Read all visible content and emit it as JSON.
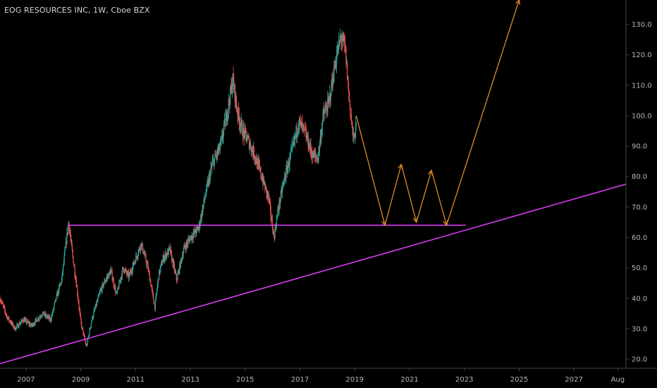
{
  "header": {
    "legend_text": "EOG RESOURCES INC, 1W, Cboe BZX"
  },
  "colors": {
    "background": "#000000",
    "candle_up": "#26a69a",
    "candle_down": "#ef5350",
    "trendline": "#e040fb",
    "projection": "#e08a2a",
    "axis_text": "#b7b7b7",
    "axis_line": "#444444"
  },
  "chart_data": {
    "type": "candlestick",
    "title": "EOG RESOURCES INC, 1W, Cboe BZX",
    "y_axis": {
      "ticks": [
        20,
        30,
        40,
        50,
        60,
        70,
        80,
        90,
        100,
        110,
        120,
        130
      ],
      "ylim": [
        17,
        138
      ],
      "position": "right"
    },
    "x_axis": {
      "ticks": [
        {
          "label": "2007",
          "t": 2007.0
        },
        {
          "label": "2009",
          "t": 2009.0
        },
        {
          "label": "2011",
          "t": 2011.0
        },
        {
          "label": "2013",
          "t": 2013.0
        },
        {
          "label": "2015",
          "t": 2015.0
        },
        {
          "label": "2017",
          "t": 2017.0
        },
        {
          "label": "2019",
          "t": 2019.0
        },
        {
          "label": "2021",
          "t": 2021.0
        },
        {
          "label": "2023",
          "t": 2023.0
        },
        {
          "label": "2025",
          "t": 2025.0
        },
        {
          "label": "2027",
          "t": 2027.0
        },
        {
          "label": "Aug",
          "t": 2028.6
        }
      ],
      "xlim": [
        2006.05,
        2028.9
      ]
    },
    "grid": false,
    "price_path": [
      [
        2006.05,
        40
      ],
      [
        2006.3,
        34
      ],
      [
        2006.6,
        30
      ],
      [
        2006.9,
        33
      ],
      [
        2007.2,
        31
      ],
      [
        2007.6,
        35
      ],
      [
        2007.9,
        33
      ],
      [
        2008.1,
        40
      ],
      [
        2008.3,
        46
      ],
      [
        2008.55,
        65
      ],
      [
        2008.7,
        54
      ],
      [
        2008.85,
        44
      ],
      [
        2009.0,
        32
      ],
      [
        2009.2,
        24
      ],
      [
        2009.4,
        33
      ],
      [
        2009.7,
        42
      ],
      [
        2009.9,
        46
      ],
      [
        2010.1,
        49
      ],
      [
        2010.3,
        41
      ],
      [
        2010.55,
        50
      ],
      [
        2010.75,
        47
      ],
      [
        2011.0,
        53
      ],
      [
        2011.2,
        58
      ],
      [
        2011.45,
        50
      ],
      [
        2011.7,
        37
      ],
      [
        2011.85,
        48
      ],
      [
        2012.0,
        53
      ],
      [
        2012.25,
        56
      ],
      [
        2012.5,
        46
      ],
      [
        2012.75,
        56
      ],
      [
        2013.0,
        60
      ],
      [
        2013.3,
        63
      ],
      [
        2013.55,
        74
      ],
      [
        2013.8,
        84
      ],
      [
        2014.1,
        90
      ],
      [
        2014.4,
        104
      ],
      [
        2014.55,
        112
      ],
      [
        2014.7,
        102
      ],
      [
        2014.9,
        95
      ],
      [
        2015.1,
        92
      ],
      [
        2015.35,
        87
      ],
      [
        2015.6,
        80
      ],
      [
        2015.85,
        73
      ],
      [
        2016.05,
        60
      ],
      [
        2016.2,
        69
      ],
      [
        2016.45,
        80
      ],
      [
        2016.7,
        88
      ],
      [
        2016.95,
        98
      ],
      [
        2017.2,
        94
      ],
      [
        2017.45,
        87
      ],
      [
        2017.65,
        86
      ],
      [
        2017.85,
        100
      ],
      [
        2018.05,
        104
      ],
      [
        2018.3,
        118
      ],
      [
        2018.5,
        126
      ],
      [
        2018.65,
        122
      ],
      [
        2018.8,
        105
      ],
      [
        2018.95,
        92
      ],
      [
        2019.05,
        96
      ]
    ],
    "trendlines": [
      {
        "kind": "horizontal",
        "y": 64,
        "x_start": 2008.55,
        "x_end": 2023.05
      },
      {
        "kind": "ascending",
        "points": [
          [
            2006.05,
            18.5
          ],
          [
            2028.9,
            77.5
          ]
        ]
      }
    ],
    "projection_path": [
      [
        2019.05,
        100
      ],
      [
        2020.1,
        64
      ],
      [
        2020.7,
        84
      ],
      [
        2021.25,
        65
      ],
      [
        2021.8,
        82
      ],
      [
        2022.35,
        64
      ],
      [
        2025.0,
        138
      ]
    ]
  }
}
